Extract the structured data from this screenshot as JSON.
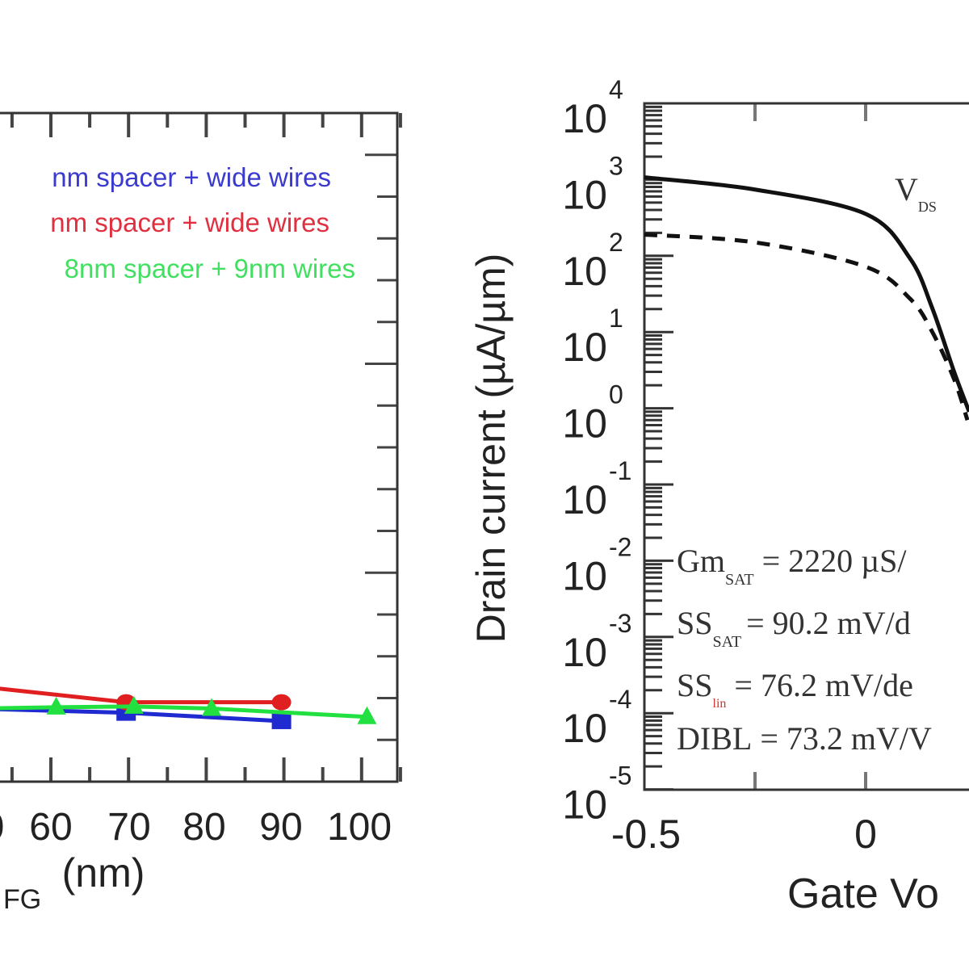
{
  "chart_data": [
    {
      "type": "line",
      "xlabel": "(nm)",
      "xlabel_subscript": "FG",
      "xlim": [
        53.8,
        104.9
      ],
      "ylim": [
        0,
        16
      ],
      "grid": false,
      "x_ticks": [
        "0",
        "60",
        "70",
        "80",
        "90",
        "100"
      ],
      "legend_placement": "top",
      "legend": [
        "nm spacer + wide wires",
        "nm spacer + wide wires",
        "8nm spacer + 9nm wires"
      ],
      "series": [
        {
          "color": "#1f2ad0",
          "marker": "square",
          "x": [
            50,
            70,
            90
          ],
          "y": [
            1.75,
            1.65,
            1.45
          ]
        },
        {
          "color": "#e02020",
          "marker": "circle",
          "x": [
            50,
            70,
            90
          ],
          "y": [
            2.3,
            1.9,
            1.9
          ]
        },
        {
          "color": "#22e040",
          "marker": "triangle",
          "x": [
            51,
            61,
            71,
            81,
            101
          ],
          "y": [
            1.75,
            1.78,
            1.8,
            1.75,
            1.55
          ]
        }
      ],
      "colors": {
        "blue": "#3a3ad0",
        "red": "#e03040",
        "green": "#40e060"
      }
    },
    {
      "type": "line",
      "ylabel": "Drain current (µA/µm)",
      "xlabel": "Gate Vo",
      "x_ticks": [
        "-0.5",
        "0"
      ],
      "xlim": [
        -0.5,
        0.234
      ],
      "ylim": [
        1e-05,
        10000.0
      ],
      "y_scale": "log",
      "y_ticks": [
        {
          "base": "10",
          "exp": "4"
        },
        {
          "base": "10",
          "exp": "3"
        },
        {
          "base": "10",
          "exp": "2"
        },
        {
          "base": "10",
          "exp": "1"
        },
        {
          "base": "10",
          "exp": "0"
        },
        {
          "base": "10",
          "exp": "-1"
        },
        {
          "base": "10",
          "exp": "-2"
        },
        {
          "base": "10",
          "exp": "-3"
        },
        {
          "base": "10",
          "exp": "-4"
        },
        {
          "base": "10",
          "exp": "-5"
        }
      ],
      "grid": false,
      "series": [
        {
          "style": "solid",
          "x": [
            -0.5,
            -0.25,
            0,
            0.1,
            0.15,
            0.2,
            0.234
          ],
          "y": [
            1070,
            740,
            355,
            93,
            21,
            3.0,
            0.9
          ]
        },
        {
          "style": "dashed",
          "x": [
            -0.5,
            -0.25,
            0,
            0.1,
            0.15,
            0.2,
            0.23
          ],
          "y": [
            190,
            150,
            72,
            27.5,
            10.2,
            2.4,
            0.7
          ]
        }
      ],
      "annotations": {
        "vds": {
          "main": "V",
          "sub": "DS"
        },
        "gm": {
          "main": "Gm",
          "sub": "SAT",
          "value": "= 2220 µS/"
        },
        "ss_sat": {
          "main": "SS",
          "sub": "SAT",
          "value": "= 90.2 mV/d"
        },
        "ss_lin": {
          "main": "SS",
          "sub": "lin",
          "value": "= 76.2 mV/de"
        },
        "dibl": {
          "main": "DIBL",
          "value": "= 73.2 mV/V"
        }
      }
    }
  ]
}
